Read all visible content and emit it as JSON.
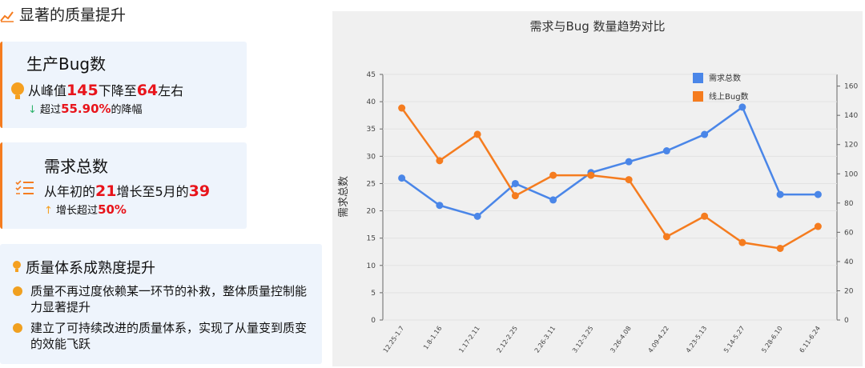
{
  "header": {
    "title": "显著的质量提升"
  },
  "cards": [
    {
      "title": "生产Bug数",
      "line1": [
        "从峰值",
        "145",
        "下降至",
        "64",
        "左右"
      ],
      "line2": [
        "超过",
        "55.90%",
        "的降幅"
      ]
    },
    {
      "title": "需求总数",
      "line1": [
        "从年初的",
        "21",
        "增长至5月的",
        "39"
      ],
      "line2": [
        "增长超过",
        "50%"
      ]
    }
  ],
  "maturity": {
    "title": "质量体系成熟度提升",
    "items": [
      "质量不再过度依赖某一环节的补救，整体质量控制能力显著提升",
      "建立了可持续改进的质量体系，实现了从量变到质变的效能飞跃"
    ]
  },
  "chart_data": {
    "type": "line",
    "title": "需求与Bug 数量趋势对比",
    "y_label": "需求总数",
    "categories": [
      "12.25-1.7",
      "1.8-1.16",
      "1.17-2.11",
      "2.12-2.25",
      "2.26-3.11",
      "3.12-3.25",
      "3.26-4.08",
      "4.09-4.22",
      "4.23-5.13",
      "5.14-5.27",
      "5.28-6.10",
      "6.11-6.24"
    ],
    "series": [
      {
        "name": "需求总数",
        "color": "#4a86e8",
        "values": [
          26,
          21,
          19,
          25,
          22,
          27,
          29,
          31,
          34,
          39,
          23,
          23
        ]
      },
      {
        "name": "线上Bug数",
        "color": "#f57c1f",
        "axis": "y2",
        "values": [
          145,
          109,
          127,
          85,
          99,
          99,
          96,
          57,
          71,
          53,
          49,
          64
        ]
      }
    ],
    "ylim": [
      0,
      45
    ],
    "yticks": [
      0,
      5,
      10,
      15,
      20,
      25,
      30,
      35,
      40,
      45
    ],
    "y2lim": [
      0,
      168
    ],
    "y2ticks": [
      0,
      20,
      40,
      60,
      80,
      100,
      120,
      140,
      160
    ],
    "grid": true,
    "legend": "top-right"
  }
}
